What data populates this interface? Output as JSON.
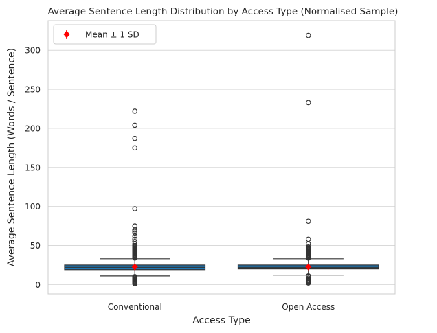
{
  "chart_data": {
    "type": "box",
    "title": "Average Sentence Length Distribution by Access Type (Normalised Sample)",
    "xlabel": "Access Type",
    "ylabel": "Average Sentence Length (Words / Sentence)",
    "ylim": [
      -12,
      338
    ],
    "yticks": [
      0,
      50,
      100,
      150,
      200,
      250,
      300
    ],
    "grid": "horizontal",
    "legend": {
      "position": "top-left",
      "label": "Mean ± 1 SD"
    },
    "colors": {
      "box": "#1f77b4",
      "mean": "#ff0000",
      "grid": "#d9d9d9",
      "spine": "#cccccc",
      "outline": "#333333"
    },
    "categories": [
      "Conventional",
      "Open Access"
    ],
    "boxes": [
      {
        "name": "Conventional",
        "whisker_low": 11,
        "q1": 19,
        "median": 22,
        "q3": 25,
        "whisker_high": 33,
        "mean": 22.5,
        "sd": 4,
        "outliers": [
          1,
          2,
          3,
          4,
          5,
          6,
          7,
          8,
          9,
          10,
          34,
          35,
          36,
          37,
          38,
          39,
          40,
          41,
          42,
          43,
          44,
          45,
          46,
          47,
          48,
          49,
          50,
          52,
          55,
          58,
          62,
          66,
          68,
          70,
          75,
          97,
          175,
          187,
          204,
          222
        ]
      },
      {
        "name": "Open Access",
        "whisker_low": 12,
        "q1": 20,
        "median": 22,
        "q3": 25,
        "whisker_high": 33,
        "mean": 22.5,
        "sd": 3.5,
        "outliers": [
          2,
          3,
          4,
          5,
          6,
          8,
          10,
          11,
          34,
          35,
          36,
          37,
          38,
          39,
          40,
          41,
          42,
          43,
          44,
          45,
          46,
          47,
          48,
          52,
          58,
          81,
          233,
          319
        ]
      }
    ]
  }
}
